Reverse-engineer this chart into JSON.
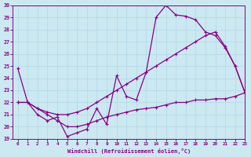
{
  "xlabel": "Windchill (Refroidissement éolien,°C)",
  "background_color": "#cce8f0",
  "grid_color": "#b0d8e8",
  "line_color": "#880088",
  "x_ticks": [
    0,
    1,
    2,
    3,
    4,
    5,
    6,
    7,
    8,
    9,
    10,
    11,
    12,
    13,
    14,
    15,
    16,
    17,
    18,
    19,
    20,
    21,
    22,
    23
  ],
  "ylim": [
    19,
    30
  ],
  "xlim": [
    -0.5,
    23
  ],
  "yticks": [
    19,
    20,
    21,
    22,
    23,
    24,
    25,
    26,
    27,
    28,
    29,
    30
  ],
  "c1y": [
    24.8,
    22.0,
    21.0,
    20.5,
    20.8,
    19.2,
    19.5,
    19.8,
    21.5,
    20.2,
    24.2,
    22.5,
    22.2,
    24.5,
    29.0,
    30.0,
    29.2,
    29.1,
    28.8,
    27.8,
    27.5,
    26.5,
    25.0,
    22.8
  ],
  "c2y": [
    22.0,
    22.0,
    21.5,
    21.2,
    21.0,
    21.0,
    21.2,
    21.5,
    22.0,
    22.5,
    23.0,
    23.5,
    24.0,
    24.5,
    25.0,
    25.5,
    26.0,
    26.5,
    27.0,
    27.5,
    27.8,
    26.6,
    25.0,
    22.8
  ],
  "c3y": [
    22.0,
    22.0,
    21.5,
    21.0,
    20.5,
    20.0,
    20.0,
    20.2,
    20.5,
    20.8,
    21.0,
    21.2,
    21.4,
    21.5,
    21.6,
    21.8,
    22.0,
    22.0,
    22.2,
    22.2,
    22.3,
    22.3,
    22.5,
    22.8
  ]
}
